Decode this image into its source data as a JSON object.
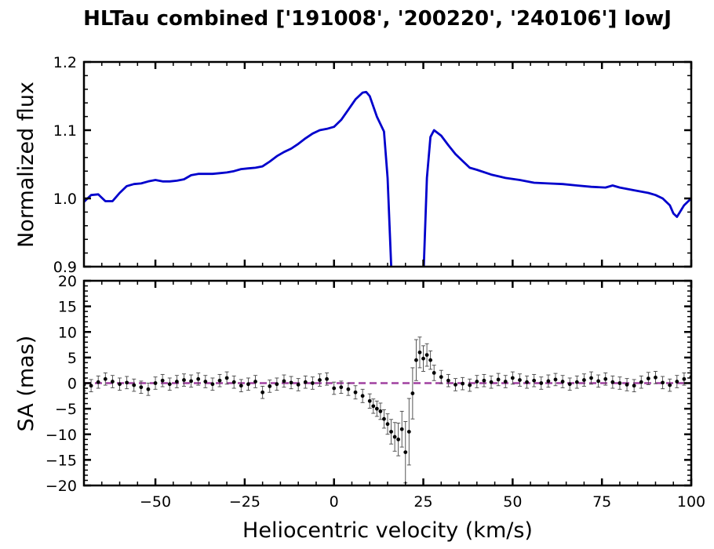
{
  "chart_data": {
    "title": "HLTau combined ['191008', '200220', '240106'] lowJ",
    "xlabel": "Heliocentric velocity (km/s)",
    "xlim": [
      -70,
      100
    ],
    "xticks": [
      -50,
      -25,
      0,
      25,
      50,
      75,
      100
    ],
    "xtick_labels": [
      "−50",
      "−25",
      "0",
      "25",
      "50",
      "75",
      "100"
    ],
    "panels": [
      {
        "type": "line",
        "ylabel": "Normalized flux",
        "ylim": [
          0.9,
          1.2
        ],
        "yticks": [
          0.9,
          1.0,
          1.1,
          1.2
        ],
        "ytick_labels": [
          "0.9",
          "1.0",
          "1.1",
          "1.2"
        ],
        "series": [
          {
            "color": "#0000cc",
            "x": [
              -70,
              -68,
              -66,
              -64,
              -62,
              -60,
              -58,
              -56,
              -54,
              -52,
              -50,
              -48,
              -46,
              -44,
              -42,
              -40,
              -38,
              -36,
              -34,
              -32,
              -30,
              -28,
              -26,
              -24,
              -22,
              -20,
              -18,
              -16,
              -14,
              -12,
              -10,
              -8,
              -6,
              -4,
              -2,
              0,
              2,
              4,
              6,
              8,
              9,
              10,
              12,
              14,
              15,
              16,
              17,
              25,
              26,
              27,
              28,
              30,
              32,
              34,
              36,
              38,
              40,
              44,
              48,
              52,
              56,
              60,
              64,
              68,
              72,
              76,
              78,
              80,
              84,
              88,
              90,
              92,
              94,
              95,
              96,
              98,
              100
            ],
            "y": [
              0.995,
              1.005,
              1.006,
              0.996,
              0.996,
              1.008,
              1.018,
              1.021,
              1.022,
              1.025,
              1.027,
              1.025,
              1.025,
              1.026,
              1.028,
              1.034,
              1.036,
              1.036,
              1.036,
              1.037,
              1.038,
              1.04,
              1.043,
              1.044,
              1.045,
              1.047,
              1.054,
              1.062,
              1.068,
              1.073,
              1.08,
              1.088,
              1.095,
              1.1,
              1.102,
              1.105,
              1.115,
              1.13,
              1.145,
              1.155,
              1.156,
              1.15,
              1.12,
              1.098,
              1.03,
              0.9,
              0.88,
              0.88,
              1.03,
              1.09,
              1.1,
              1.092,
              1.078,
              1.065,
              1.055,
              1.045,
              1.042,
              1.035,
              1.03,
              1.027,
              1.023,
              1.022,
              1.021,
              1.019,
              1.017,
              1.016,
              1.019,
              1.016,
              1.012,
              1.008,
              1.005,
              1.0,
              0.99,
              0.978,
              0.973,
              0.99,
              1.0
            ]
          }
        ]
      },
      {
        "type": "scatter",
        "ylabel": "SA (mas)",
        "ylim": [
          -20,
          20
        ],
        "yticks": [
          -20,
          -15,
          -10,
          -5,
          0,
          5,
          10,
          15,
          20
        ],
        "ytick_labels": [
          "−20",
          "−15",
          "−10",
          "−5",
          "0",
          "5",
          "10",
          "15",
          "20"
        ],
        "reference_line": {
          "y": 0,
          "style": "dashed",
          "color": "#a040a0"
        },
        "series": [
          {
            "color": "#000000",
            "x": [
              -70,
              -68,
              -66,
              -64,
              -62,
              -60,
              -58,
              -56,
              -54,
              -52,
              -50,
              -48,
              -46,
              -44,
              -42,
              -40,
              -38,
              -36,
              -34,
              -32,
              -30,
              -28,
              -26,
              -24,
              -22,
              -20,
              -18,
              -16,
              -14,
              -12,
              -10,
              -8,
              -6,
              -4,
              -2,
              0,
              2,
              4,
              6,
              8,
              10,
              11,
              12,
              13,
              14,
              15,
              16,
              17,
              18,
              19,
              20,
              21,
              22,
              23,
              24,
              25,
              26,
              27,
              28,
              30,
              32,
              34,
              36,
              38,
              40,
              42,
              44,
              46,
              48,
              50,
              52,
              54,
              56,
              58,
              60,
              62,
              64,
              66,
              68,
              70,
              72,
              74,
              76,
              78,
              80,
              82,
              84,
              86,
              88,
              90,
              92,
              94,
              96,
              98,
              100
            ],
            "y": [
              -0.3,
              -0.5,
              0.2,
              0.8,
              0.3,
              -0.2,
              0.1,
              -0.4,
              -0.8,
              -1.2,
              0.0,
              0.5,
              -0.2,
              0.3,
              0.6,
              0.4,
              0.8,
              0.3,
              -0.2,
              0.5,
              1.0,
              0.2,
              -0.5,
              -0.2,
              0.3,
              -1.8,
              -0.6,
              -0.2,
              0.4,
              0.1,
              -0.3,
              0.2,
              0.0,
              0.6,
              0.8,
              -1.0,
              -0.8,
              -1.2,
              -1.8,
              -2.5,
              -3.5,
              -4.5,
              -5.0,
              -5.5,
              -7.0,
              -8.0,
              -9.5,
              -10.5,
              -11.0,
              -9.0,
              -13.5,
              -9.5,
              -2.0,
              4.5,
              6.0,
              4.8,
              5.5,
              4.5,
              2.0,
              1.2,
              0.5,
              -0.3,
              -0.1,
              -0.4,
              0.3,
              0.5,
              0.2,
              0.7,
              0.3,
              1.0,
              0.6,
              0.2,
              0.5,
              0.0,
              0.4,
              0.7,
              0.3,
              -0.2,
              0.2,
              0.6,
              1.0,
              0.4,
              0.8,
              0.2,
              0.0,
              -0.3,
              -0.5,
              0.2,
              0.9,
              1.1,
              0.1,
              -0.4,
              0.3,
              0.8,
              1.2
            ],
            "err": [
              1.2,
              1.2,
              1.2,
              1.2,
              1.2,
              1.2,
              1.2,
              1.2,
              1.2,
              1.2,
              1.2,
              1.2,
              1.2,
              1.2,
              1.2,
              1.2,
              1.2,
              1.2,
              1.2,
              1.2,
              1.2,
              1.2,
              1.2,
              1.2,
              1.2,
              1.2,
              1.2,
              1.2,
              1.2,
              1.2,
              1.2,
              1.2,
              1.2,
              1.2,
              1.2,
              1.2,
              1.2,
              1.2,
              1.3,
              1.3,
              1.4,
              1.4,
              1.5,
              1.6,
              1.8,
              2.0,
              2.4,
              2.8,
              3.2,
              3.5,
              6.0,
              6.5,
              5.0,
              4.0,
              3.0,
              2.5,
              2.2,
              1.8,
              1.5,
              1.3,
              1.2,
              1.2,
              1.2,
              1.2,
              1.2,
              1.2,
              1.2,
              1.2,
              1.2,
              1.2,
              1.2,
              1.2,
              1.2,
              1.2,
              1.2,
              1.2,
              1.2,
              1.2,
              1.2,
              1.2,
              1.2,
              1.2,
              1.2,
              1.2,
              1.2,
              1.2,
              1.2,
              1.2,
              1.2,
              1.2,
              1.2,
              1.2,
              1.2,
              1.2,
              1.2
            ]
          }
        ]
      }
    ]
  }
}
